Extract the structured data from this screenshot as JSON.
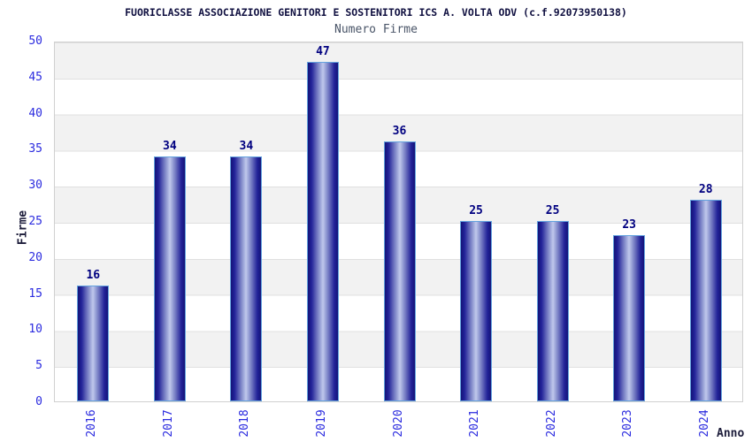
{
  "chart_data": {
    "type": "bar",
    "title": "FUORICLASSE ASSOCIAZIONE GENITORI E SOSTENITORI ICS A. VOLTA ODV (c.f.92073950138)",
    "subtitle": "Numero Firme",
    "xlabel": "Anno",
    "ylabel": "Firme",
    "categories": [
      "2016",
      "2017",
      "2018",
      "2019",
      "2020",
      "2021",
      "2022",
      "2023",
      "2024"
    ],
    "values": [
      16,
      34,
      34,
      47,
      36,
      25,
      25,
      23,
      28
    ],
    "ylim": [
      0,
      50
    ],
    "ytick_step": 5,
    "grid": "horizontal-bands-alternating",
    "legend": "none",
    "bar_labels_shown": true,
    "xtick_rotation_deg": -90
  },
  "colors": {
    "tick_label": "#2b2bdf",
    "title": "#101040",
    "subtitle": "#4a5568",
    "axis_title": "#1c1c3a",
    "value_label": "#000080",
    "bar_border": "#63a2de",
    "bar_edge": "#141478",
    "bar_mid": "#222298",
    "bar_mid2": "#8d96d0",
    "bar_highlight": "#bcc4ea",
    "band_gray": "#f2f2f2",
    "grid_line": "#e0e0e0",
    "plot_border": "#d0d0d0",
    "background": "#ffffff"
  }
}
